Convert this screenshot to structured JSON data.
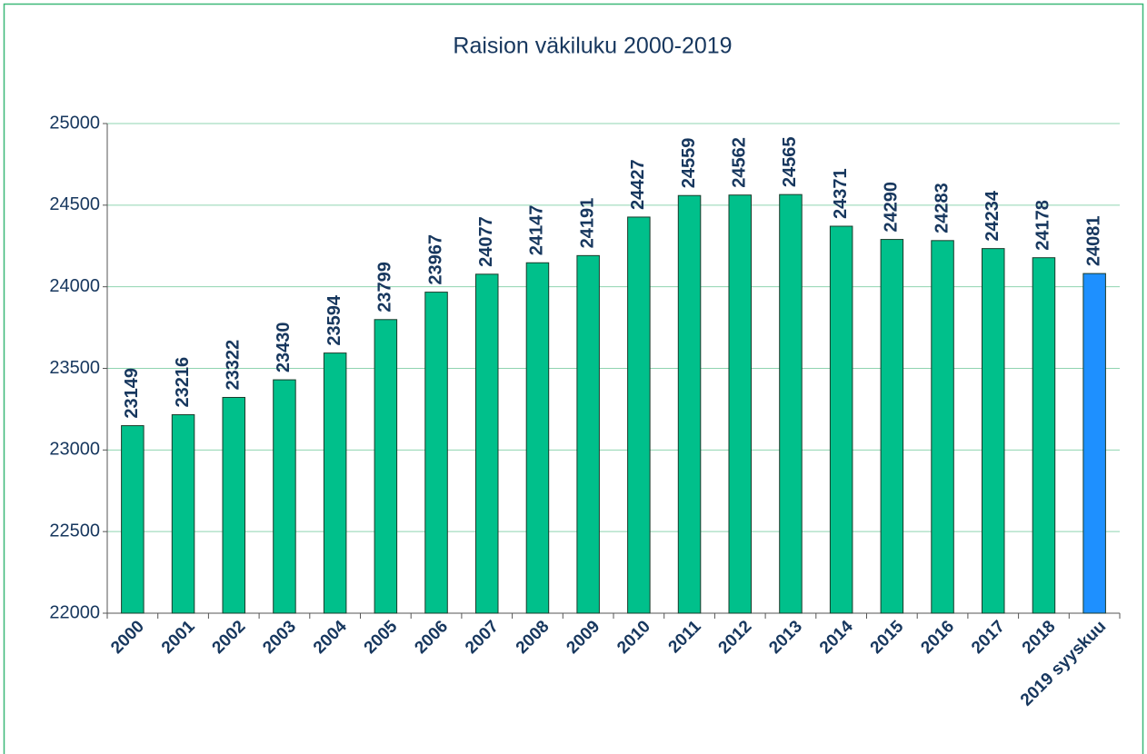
{
  "chart_data": {
    "type": "bar",
    "title": "Raision väkiluku 2000-2019",
    "categories": [
      "2000",
      "2001",
      "2002",
      "2003",
      "2004",
      "2005",
      "2006",
      "2007",
      "2008",
      "2009",
      "2010",
      "2011",
      "2012",
      "2013",
      "2014",
      "2015",
      "2016",
      "2017",
      "2018",
      "2019 syyskuu"
    ],
    "values": [
      23149,
      23216,
      23322,
      23430,
      23594,
      23799,
      23967,
      24077,
      24147,
      24191,
      24427,
      24559,
      24562,
      24565,
      24371,
      24290,
      24283,
      24234,
      24178,
      24081
    ],
    "colors": [
      "#00c08b",
      "#00c08b",
      "#00c08b",
      "#00c08b",
      "#00c08b",
      "#00c08b",
      "#00c08b",
      "#00c08b",
      "#00c08b",
      "#00c08b",
      "#00c08b",
      "#00c08b",
      "#00c08b",
      "#00c08b",
      "#00c08b",
      "#00c08b",
      "#00c08b",
      "#00c08b",
      "#00c08b",
      "#1e90ff"
    ],
    "ylim": [
      22000,
      25000
    ],
    "yticks": [
      22000,
      22500,
      23000,
      23500,
      24000,
      24500,
      25000
    ],
    "grid": true
  }
}
